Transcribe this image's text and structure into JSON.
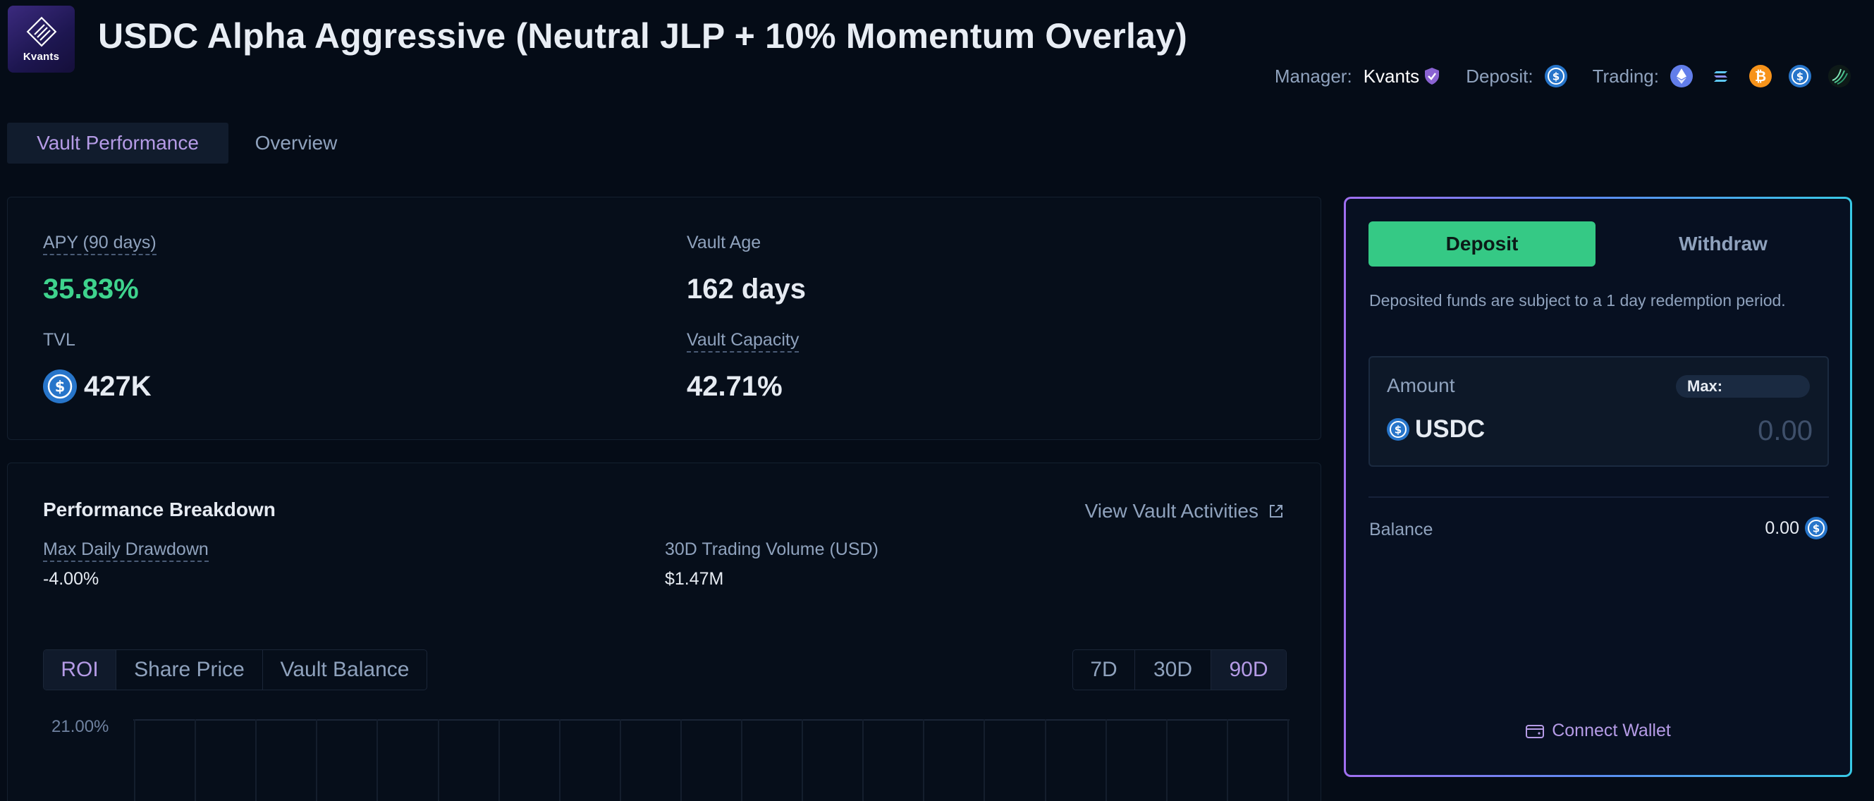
{
  "header": {
    "logo_text": "Kvants",
    "title": "USDC Alpha Aggressive (Neutral JLP + 10% Momentum Overlay)",
    "manager_label": "Manager:",
    "manager_name": "Kvants",
    "deposit_label": "Deposit:",
    "trading_label": "Trading:",
    "trading_assets": [
      "eth-icon",
      "sol-icon",
      "btc-icon",
      "usdc-icon",
      "jlp-icon"
    ]
  },
  "tabs": [
    {
      "label": "Vault Performance",
      "active": true
    },
    {
      "label": "Overview",
      "active": false
    }
  ],
  "stats": {
    "apy_label": "APY (90 days)",
    "apy_value": "35.83%",
    "tvl_label": "TVL",
    "tvl_value": "427K",
    "age_label": "Vault Age",
    "age_value": "162 days",
    "capacity_label": "Vault Capacity",
    "capacity_value": "42.71%"
  },
  "performance": {
    "title": "Performance Breakdown",
    "activities_link": "View Vault Activities",
    "drawdown_label": "Max Daily Drawdown",
    "drawdown_value": "-4.00%",
    "volume_label": "30D Trading Volume (USD)",
    "volume_value": "$1.47M",
    "metric_tabs": [
      {
        "label": "ROI",
        "active": true
      },
      {
        "label": "Share Price",
        "active": false
      },
      {
        "label": "Vault Balance",
        "active": false
      }
    ],
    "range_tabs": [
      {
        "label": "7D",
        "active": false
      },
      {
        "label": "30D",
        "active": false
      },
      {
        "label": "90D",
        "active": true
      }
    ]
  },
  "chart_data": {
    "type": "line",
    "title": "",
    "xlabel": "",
    "ylabel": "",
    "y_ticks_visible": [
      "21.00%"
    ],
    "grid": true,
    "series": []
  },
  "panel": {
    "deposit_tab": "Deposit",
    "withdraw_tab": "Withdraw",
    "notice": "Deposited funds are subject to a 1 day redemption period.",
    "amount_label": "Amount",
    "max_label": "Max:",
    "token": "USDC",
    "amount_placeholder": "0.00",
    "balance_label": "Balance",
    "balance_value": "0.00",
    "connect_label": "Connect Wallet"
  },
  "colors": {
    "background": "#050c17",
    "accent_purple": "#b59be6",
    "accent_green": "#35c985",
    "usdc_blue": "#2775ca"
  }
}
